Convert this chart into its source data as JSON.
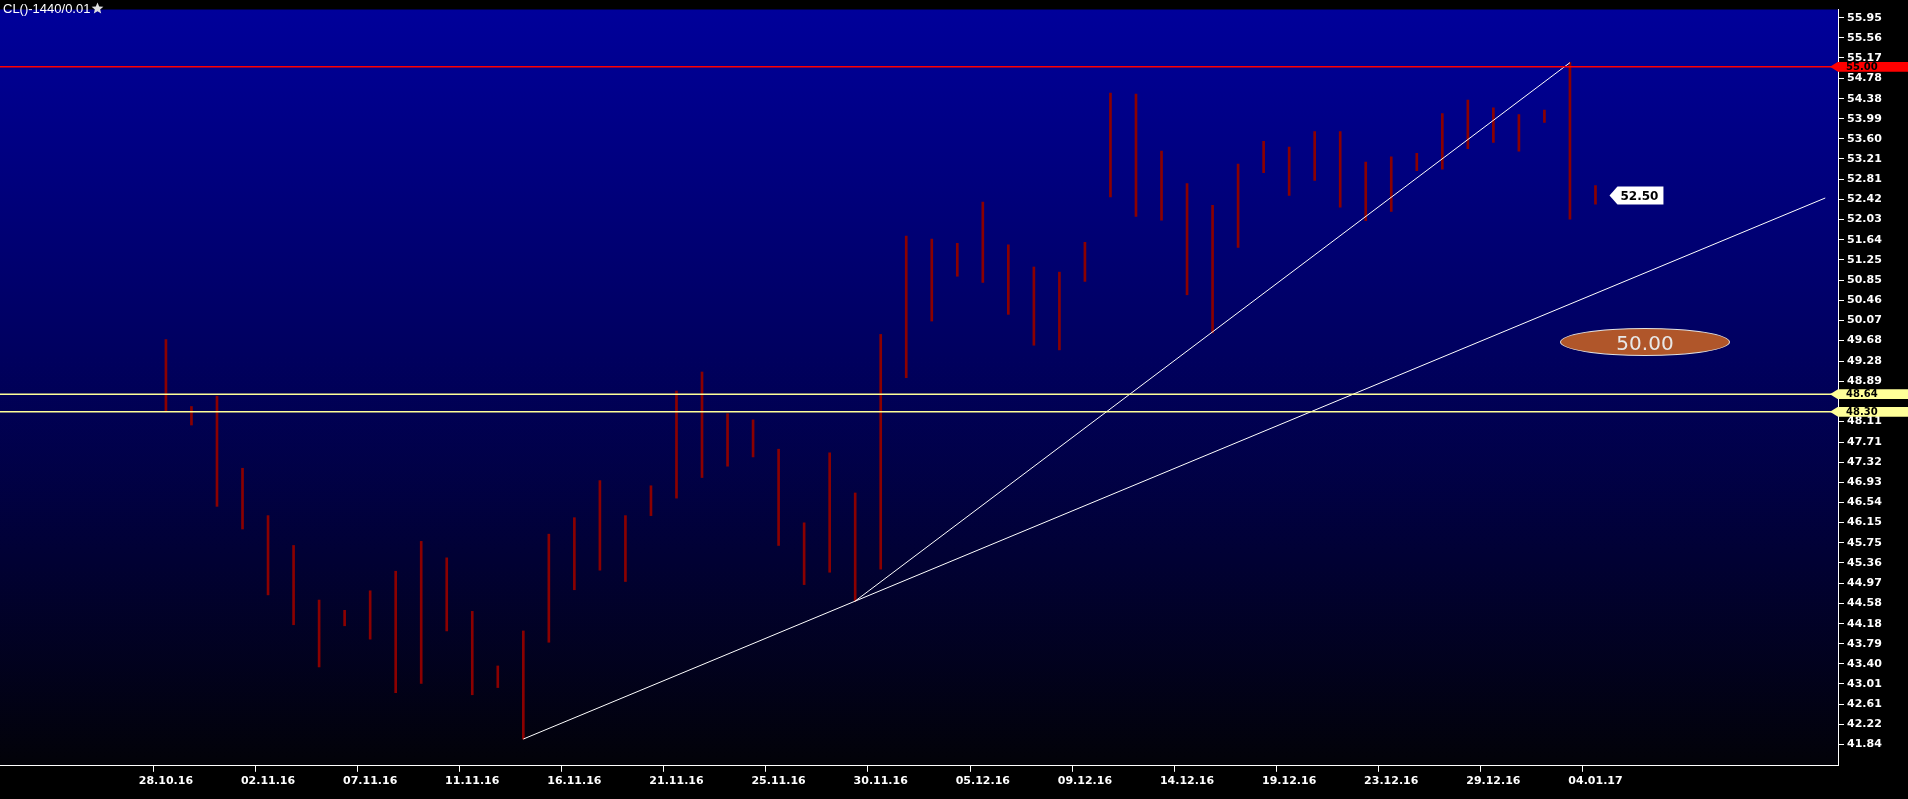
{
  "chart_data": {
    "type": "bar",
    "title": "CL()-1440/0.01",
    "categories": [
      null,
      null,
      null,
      null,
      null,
      null,
      "28.10.16",
      null,
      null,
      null,
      "02.11.16",
      null,
      null,
      null,
      "07.11.16",
      null,
      null,
      null,
      "11.11.16",
      null,
      null,
      null,
      "16.11.16",
      null,
      null,
      null,
      "21.11.16",
      null,
      null,
      null,
      "25.11.16",
      null,
      null,
      null,
      "30.11.16",
      null,
      null,
      null,
      "05.12.16",
      null,
      null,
      null,
      "09.12.16",
      null,
      null,
      null,
      "14.12.16",
      null,
      null,
      null,
      "19.12.16",
      null,
      null,
      null,
      "23.12.16",
      null,
      null,
      null,
      "29.12.16",
      null,
      null,
      null,
      "04.01.17",
      null,
      null,
      null,
      null,
      null,
      null,
      null,
      null,
      null
    ],
    "series": [
      {
        "color": "#8b0000",
        "base": [
          null,
          null,
          null,
          null,
          null,
          null,
          48.3,
          48.04,
          46.46,
          46.02,
          44.74,
          44.16,
          43.34,
          44.14,
          43.88,
          42.84,
          43.02,
          44.04,
          42.8,
          42.94,
          41.94,
          43.82,
          44.84,
          45.22,
          45.0,
          46.28,
          46.62,
          47.02,
          47.24,
          47.42,
          45.7,
          44.94,
          45.18,
          44.62,
          45.24,
          48.96,
          50.06,
          50.93,
          50.81,
          50.19,
          49.59,
          49.5,
          50.83,
          52.47,
          52.09,
          52.02,
          50.57,
          49.83,
          51.49,
          52.94,
          52.5,
          52.79,
          52.27,
          52.01,
          52.19,
          52.98,
          53.01,
          53.41,
          53.53,
          53.36,
          53.92,
          52.04,
          52.33,
          null,
          null,
          null,
          null,
          null,
          null,
          null,
          null,
          null
        ],
        "values": [
          null,
          null,
          null,
          null,
          null,
          null,
          1.4,
          0.36,
          2.14,
          1.18,
          1.54,
          1.54,
          1.3,
          0.3,
          0.94,
          2.36,
          2.76,
          1.42,
          1.62,
          0.42,
          2.1,
          2.1,
          1.4,
          1.74,
          1.28,
          0.58,
          2.08,
          2.05,
          1.02,
          0.72,
          1.87,
          1.2,
          2.32,
          2.1,
          4.56,
          2.75,
          1.59,
          0.64,
          1.56,
          1.35,
          1.52,
          1.51,
          0.76,
          2.02,
          2.38,
          1.34,
          2.16,
          2.48,
          1.62,
          0.61,
          0.94,
          0.95,
          1.47,
          1.14,
          1.06,
          0.34,
          1.08,
          0.94,
          0.67,
          0.71,
          0.24,
          3.04,
          0.36,
          null,
          null,
          null,
          null,
          null,
          null,
          null,
          null,
          null
        ]
      },
      {
        "type": "line",
        "color": "#ffffff",
        "values": [
          null,
          null,
          null,
          null,
          null,
          null,
          null,
          null,
          null,
          null,
          null,
          null,
          null,
          null,
          null,
          null,
          null,
          null,
          null,
          null,
          41.94,
          null,
          null,
          null,
          null,
          null,
          null,
          null,
          null,
          null,
          null,
          null,
          null,
          null,
          null,
          null,
          null,
          null,
          null,
          null,
          null,
          null,
          null,
          null,
          null,
          null,
          null,
          null,
          null,
          null,
          null,
          null,
          null,
          null,
          null,
          null,
          null,
          null,
          null,
          null,
          null,
          null,
          null,
          null,
          null,
          null,
          null,
          null,
          null,
          null,
          null,
          52.45
        ]
      },
      {
        "type": "line",
        "color": "#ffffff",
        "values": [
          null,
          null,
          null,
          null,
          null,
          null,
          null,
          null,
          null,
          null,
          null,
          null,
          null,
          null,
          null,
          null,
          null,
          null,
          null,
          null,
          null,
          null,
          null,
          null,
          null,
          null,
          null,
          null,
          null,
          null,
          null,
          null,
          null,
          44.62,
          null,
          null,
          null,
          null,
          null,
          null,
          null,
          null,
          null,
          null,
          null,
          null,
          null,
          null,
          null,
          null,
          null,
          null,
          null,
          null,
          null,
          null,
          null,
          null,
          null,
          null,
          null,
          55.08,
          null,
          null,
          null,
          null,
          null,
          null,
          null,
          null,
          null,
          null
        ]
      }
    ],
    "ylim": [
      41.42,
      56.11
    ],
    "yticks": [
      55.95,
      55.56,
      55.17,
      54.78,
      54.38,
      53.99,
      {
        "value": 53.6,
        "label": "53.60"
      },
      53.21,
      52.81,
      52.42,
      52.03,
      51.64,
      51.25,
      50.85,
      50.46,
      50.07,
      49.68,
      49.28,
      48.89,
      48.11,
      47.71,
      47.32,
      46.93,
      46.54,
      46.15,
      45.75,
      45.36,
      44.97,
      44.58,
      44.18,
      43.79,
      {
        "value": 43.4,
        "label": "43.40"
      },
      43.01,
      42.61,
      42.22,
      41.84
    ],
    "ref_lines": [
      {
        "axis": "y",
        "value": 55.0,
        "label": "55.00",
        "color": "#ff0000"
      },
      {
        "axis": "y",
        "value": 48.64,
        "label": "48.64",
        "color": "#ffff99"
      },
      {
        "axis": "y",
        "value": 48.3,
        "label": "48.30",
        "color": "#ffff99"
      }
    ],
    "annotations": [
      {
        "text": "52.50",
        "x": "04.01.17",
        "y": 52.5
      },
      "50.00"
    ],
    "grid": false,
    "legend": false
  }
}
